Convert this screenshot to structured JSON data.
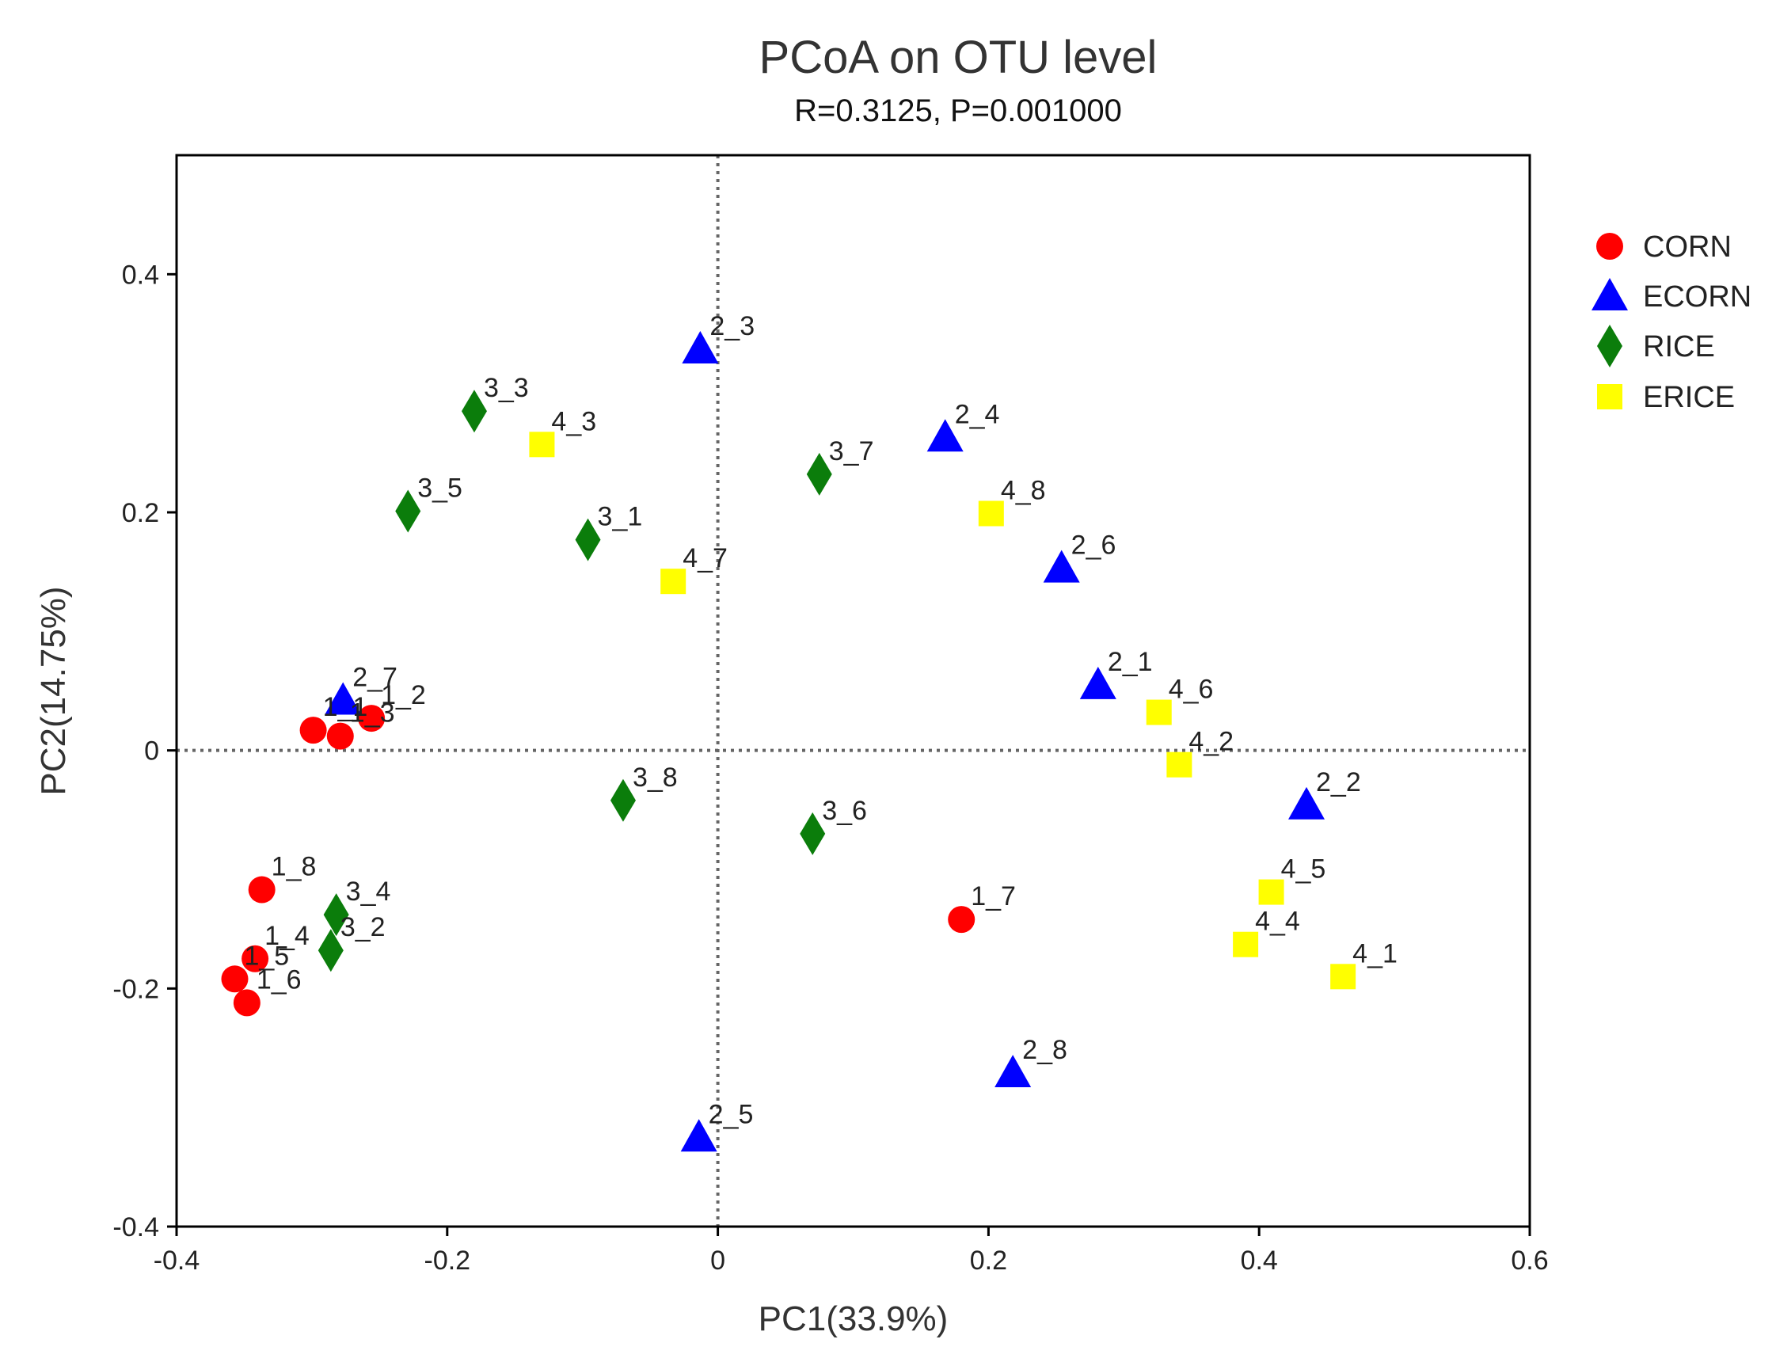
{
  "chart_data": {
    "type": "scatter",
    "title": "PCoA on OTU level",
    "subtitle": "R=0.3125, P=0.001000",
    "xlabel": "PC1(33.9%)",
    "ylabel": "PC2(14.75%)",
    "xlim": [
      -0.4,
      0.6
    ],
    "ylim": [
      -0.4,
      0.5
    ],
    "xticks": [
      -0.4,
      -0.2,
      0,
      0.2,
      0.4,
      0.6
    ],
    "xtick_labels": [
      "-0.4",
      "-0.2",
      "0",
      "0.2",
      "0.4",
      "0.6"
    ],
    "yticks": [
      -0.4,
      -0.2,
      0,
      0.2,
      0.4
    ],
    "ytick_labels": [
      "-0.4",
      "-0.2",
      "0",
      "0.2",
      "0.4"
    ],
    "reference_lines": {
      "x": 0,
      "y": 0,
      "style": "dotted"
    },
    "grid": false,
    "legend_position": "right",
    "series": [
      {
        "name": "CORN",
        "marker": "circle",
        "color": "#ff0000",
        "points": [
          {
            "label": "1_1",
            "x": -0.299,
            "y": 0.017
          },
          {
            "label": "1_2",
            "x": -0.256,
            "y": 0.027
          },
          {
            "label": "1_3",
            "x": -0.279,
            "y": 0.012
          },
          {
            "label": "1_4",
            "x": -0.342,
            "y": -0.175
          },
          {
            "label": "1_5",
            "x": -0.357,
            "y": -0.192
          },
          {
            "label": "1_6",
            "x": -0.348,
            "y": -0.212
          },
          {
            "label": "1_7",
            "x": 0.18,
            "y": -0.142
          },
          {
            "label": "1_8",
            "x": -0.337,
            "y": -0.117
          }
        ]
      },
      {
        "name": "ECORN",
        "marker": "triangle",
        "color": "#0000ff",
        "points": [
          {
            "label": "2_1",
            "x": 0.281,
            "y": 0.055
          },
          {
            "label": "2_2",
            "x": 0.435,
            "y": -0.046
          },
          {
            "label": "2_3",
            "x": -0.013,
            "y": 0.337
          },
          {
            "label": "2_4",
            "x": 0.168,
            "y": 0.263
          },
          {
            "label": "2_5",
            "x": -0.014,
            "y": -0.325
          },
          {
            "label": "2_6",
            "x": 0.254,
            "y": 0.153
          },
          {
            "label": "2_7",
            "x": -0.277,
            "y": 0.042
          },
          {
            "label": "2_8",
            "x": 0.218,
            "y": -0.271
          }
        ]
      },
      {
        "name": "RICE",
        "marker": "diamond",
        "color": "#0b7d0b",
        "points": [
          {
            "label": "3_1",
            "x": -0.096,
            "y": 0.177
          },
          {
            "label": "3_2",
            "x": -0.286,
            "y": -0.168
          },
          {
            "label": "3_3",
            "x": -0.18,
            "y": 0.285
          },
          {
            "label": "3_4",
            "x": -0.282,
            "y": -0.138
          },
          {
            "label": "3_5",
            "x": -0.229,
            "y": 0.201
          },
          {
            "label": "3_6",
            "x": 0.07,
            "y": -0.07
          },
          {
            "label": "3_7",
            "x": 0.075,
            "y": 0.232
          },
          {
            "label": "3_8",
            "x": -0.07,
            "y": -0.042
          }
        ]
      },
      {
        "name": "ERICE",
        "marker": "square",
        "color": "#ffff00",
        "points": [
          {
            "label": "4_1",
            "x": 0.462,
            "y": -0.19
          },
          {
            "label": "4_2",
            "x": 0.341,
            "y": -0.012
          },
          {
            "label": "4_3",
            "x": -0.13,
            "y": 0.257
          },
          {
            "label": "4_4",
            "x": 0.39,
            "y": -0.163
          },
          {
            "label": "4_5",
            "x": 0.409,
            "y": -0.119
          },
          {
            "label": "4_6",
            "x": 0.326,
            "y": 0.032
          },
          {
            "label": "4_7",
            "x": -0.033,
            "y": 0.142
          },
          {
            "label": "4_8",
            "x": 0.202,
            "y": 0.199
          }
        ]
      }
    ]
  }
}
